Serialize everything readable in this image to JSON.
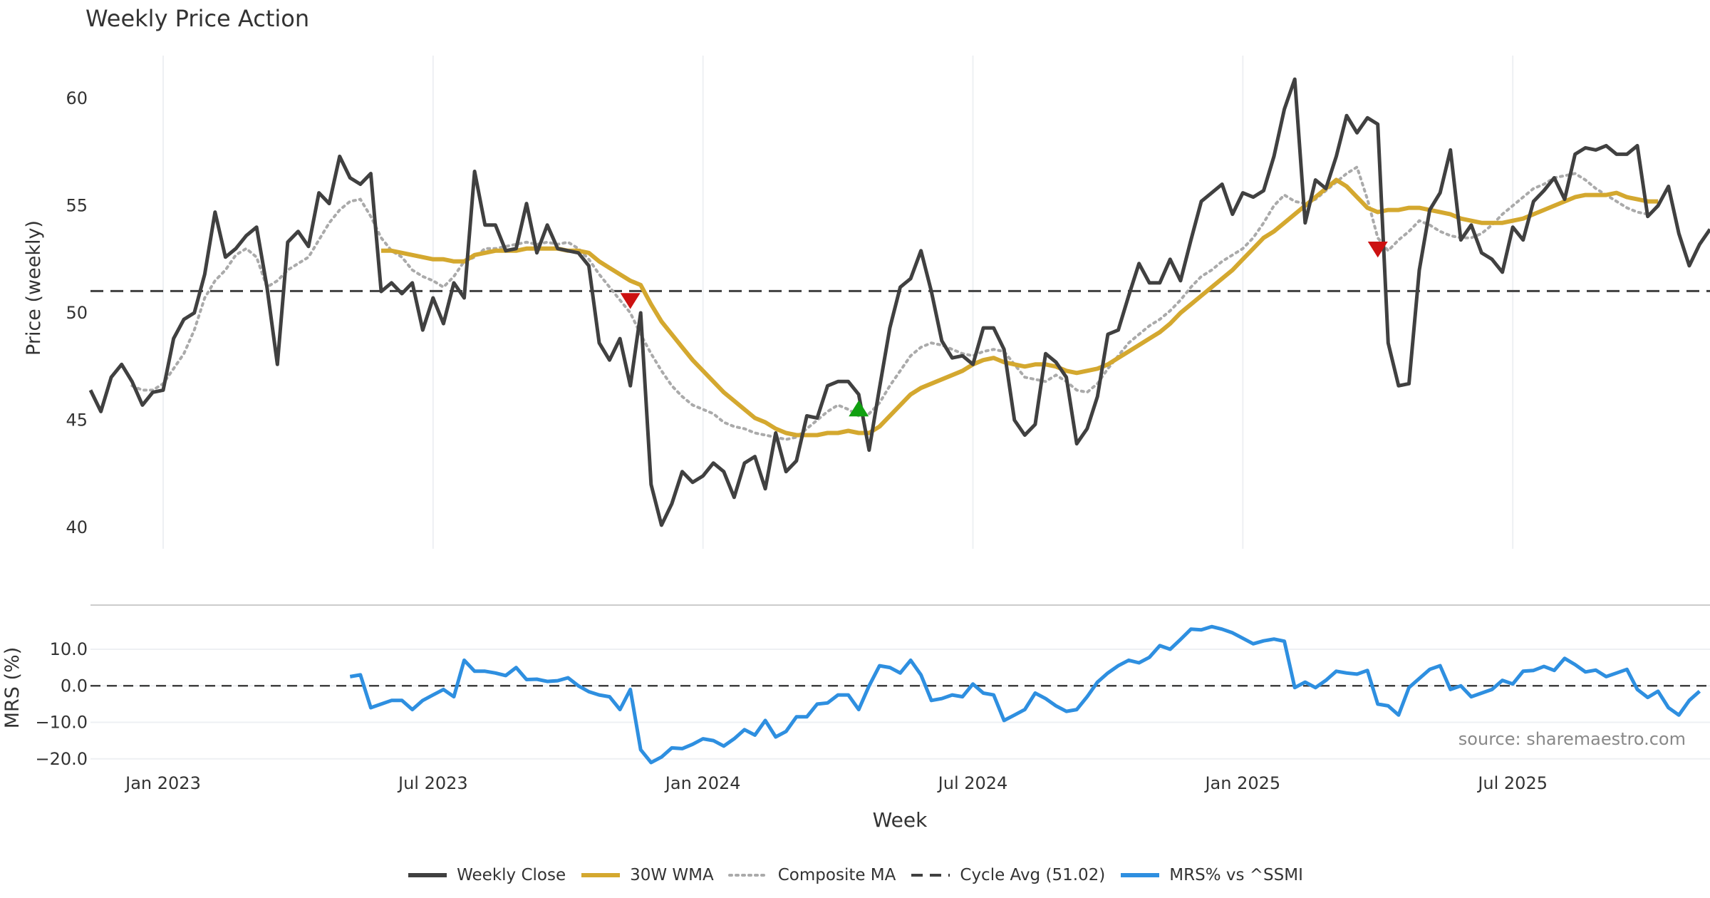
{
  "chart_data": {
    "type": "line",
    "title": "Weekly Price Action",
    "xlabel": "Week",
    "source": "source: sharemaestro.com",
    "x_ticks": [
      "Jan 2023",
      "Jul 2023",
      "Jan 2024",
      "Jul 2024",
      "Jan 2025",
      "Jul 2025"
    ],
    "x_tick_weeks": [
      7,
      33,
      59,
      85,
      111,
      137
    ],
    "x_range": [
      0,
      156
    ],
    "price_panel": {
      "ylabel": "Price (weekly)",
      "ylim": [
        39,
        62
      ],
      "yticks": [
        40,
        45,
        50,
        55,
        60
      ],
      "cycle_avg": 51.02,
      "weekly_close": [
        46.4,
        45.4,
        47.0,
        47.6,
        46.8,
        45.7,
        46.3,
        46.4,
        48.8,
        49.7,
        50.0,
        51.8,
        54.7,
        52.6,
        53.0,
        53.6,
        54.0,
        51.2,
        47.6,
        53.3,
        53.8,
        53.1,
        55.6,
        55.1,
        57.3,
        56.3,
        56.0,
        56.5,
        51.0,
        51.4,
        50.9,
        51.4,
        49.2,
        50.7,
        49.5,
        51.4,
        50.7,
        56.6,
        54.1,
        54.1,
        52.9,
        53.0,
        55.1,
        52.8,
        54.1,
        53.0,
        52.9,
        52.8,
        52.2,
        48.6,
        47.8,
        48.8,
        46.6,
        50.0,
        42.0,
        40.1,
        41.1,
        42.6,
        42.1,
        42.4,
        43.0,
        42.6,
        41.4,
        43.0,
        43.3,
        41.8,
        44.4,
        42.6,
        43.1,
        45.2,
        45.1,
        46.6,
        46.8,
        46.8,
        46.2,
        43.6,
        46.5,
        49.3,
        51.2,
        51.6,
        52.9,
        51.0,
        48.7,
        47.9,
        48.0,
        47.6,
        49.3,
        49.3,
        48.3,
        45.0,
        44.3,
        44.8,
        48.1,
        47.7,
        47.0,
        43.9,
        44.6,
        46.1,
        49.0,
        49.2,
        50.8,
        52.3,
        51.4,
        51.4,
        52.5,
        51.5,
        53.4,
        55.2,
        55.6,
        56.0,
        54.6,
        55.6,
        55.4,
        55.7,
        57.3,
        59.5,
        60.9,
        54.2,
        56.2,
        55.8,
        57.3,
        59.2,
        58.4,
        59.1,
        58.8,
        48.6,
        46.6,
        46.7,
        52.0,
        54.8,
        55.6,
        57.6,
        53.4,
        54.1,
        52.8,
        52.5,
        51.9,
        54.0,
        53.4,
        55.2,
        55.7,
        56.3,
        55.3,
        57.4,
        57.7,
        57.6,
        57.8,
        57.4,
        57.4,
        57.8,
        54.5,
        55.0,
        55.9,
        53.7,
        52.2,
        53.2,
        53.9
      ],
      "wma_30": [
        null,
        null,
        null,
        null,
        null,
        null,
        null,
        null,
        null,
        null,
        null,
        null,
        null,
        null,
        null,
        null,
        null,
        null,
        null,
        null,
        null,
        null,
        null,
        null,
        null,
        null,
        null,
        null,
        52.9,
        52.9,
        52.8,
        52.7,
        52.6,
        52.5,
        52.5,
        52.4,
        52.4,
        52.7,
        52.8,
        52.9,
        52.9,
        52.9,
        53.0,
        53.0,
        53.0,
        53.0,
        52.9,
        52.9,
        52.8,
        52.4,
        52.1,
        51.8,
        51.5,
        51.3,
        50.4,
        49.6,
        49.0,
        48.4,
        47.8,
        47.3,
        46.8,
        46.3,
        45.9,
        45.5,
        45.1,
        44.9,
        44.6,
        44.4,
        44.3,
        44.3,
        44.3,
        44.4,
        44.4,
        44.5,
        44.4,
        44.4,
        44.7,
        45.2,
        45.7,
        46.2,
        46.5,
        46.7,
        46.9,
        47.1,
        47.3,
        47.6,
        47.8,
        47.9,
        47.7,
        47.6,
        47.5,
        47.6,
        47.6,
        47.5,
        47.3,
        47.2,
        47.3,
        47.4,
        47.6,
        47.9,
        48.2,
        48.5,
        48.8,
        49.1,
        49.5,
        50.0,
        50.4,
        50.8,
        51.2,
        51.6,
        52.0,
        52.5,
        53.0,
        53.5,
        53.8,
        54.2,
        54.6,
        55.0,
        55.4,
        55.8,
        56.2,
        55.9,
        55.4,
        54.9,
        54.7,
        54.8,
        54.8,
        54.9,
        54.9,
        54.8,
        54.7,
        54.6,
        54.4,
        54.3,
        54.2,
        54.2,
        54.2,
        54.3,
        54.4,
        54.6,
        54.8,
        55.0,
        55.2,
        55.4,
        55.5,
        55.5,
        55.5,
        55.6,
        55.4,
        55.3,
        55.2,
        55.2
      ],
      "composite_ma": [
        null,
        null,
        null,
        null,
        46.6,
        46.4,
        46.4,
        46.7,
        47.4,
        48.1,
        49.2,
        50.7,
        51.5,
        52.0,
        52.7,
        53.0,
        52.6,
        51.2,
        51.5,
        52.0,
        52.3,
        52.6,
        53.4,
        54.2,
        54.8,
        55.2,
        55.3,
        54.5,
        53.5,
        52.9,
        52.6,
        52.0,
        51.7,
        51.5,
        51.2,
        51.7,
        52.4,
        52.6,
        53.0,
        53.0,
        53.1,
        53.2,
        53.3,
        53.2,
        53.3,
        53.2,
        53.3,
        53.0,
        52.5,
        51.8,
        51.2,
        50.6,
        50.0,
        49.0,
        48.1,
        47.3,
        46.6,
        46.1,
        45.7,
        45.5,
        45.3,
        44.9,
        44.7,
        44.6,
        44.4,
        44.3,
        44.2,
        44.1,
        44.2,
        44.6,
        45.0,
        45.4,
        45.7,
        45.5,
        45.2,
        45.3,
        45.8,
        46.6,
        47.3,
        48.0,
        48.4,
        48.6,
        48.5,
        48.3,
        48.1,
        48.0,
        48.2,
        48.3,
        48.2,
        47.6,
        47.0,
        46.9,
        46.8,
        47.1,
        46.8,
        46.4,
        46.3,
        46.7,
        47.4,
        48.0,
        48.6,
        49.0,
        49.4,
        49.7,
        50.1,
        50.6,
        51.2,
        51.7,
        52.0,
        52.4,
        52.7,
        53.0,
        53.5,
        54.2,
        55.0,
        55.5,
        55.2,
        55.1,
        55.3,
        55.7,
        56.1,
        56.5,
        56.8,
        55.3,
        53.5,
        52.9,
        53.4,
        53.8,
        54.3,
        54.1,
        53.8,
        53.6,
        53.5,
        53.5,
        53.7,
        54.1,
        54.6,
        55.0,
        55.4,
        55.8,
        56.0,
        56.3,
        56.4,
        56.5,
        56.2,
        55.8,
        55.5,
        55.2,
        54.9,
        54.7,
        54.6
      ],
      "markers": [
        {
          "week": 52,
          "value": 50.6,
          "type": "sell"
        },
        {
          "week": 74,
          "value": 45.5,
          "type": "buy"
        },
        {
          "week": 124,
          "value": 53.0,
          "type": "sell"
        }
      ]
    },
    "mrs_panel": {
      "ylabel": "MRS (%)",
      "ylim": [
        -22,
        18
      ],
      "yticks": [
        10.0,
        0.0,
        -10.0,
        -20.0
      ],
      "ytick_labels": [
        "10.0",
        "0.0",
        "−10.0",
        "−20.0"
      ],
      "zero_line": 0.0,
      "mrs_vs_ssmi": [
        null,
        null,
        null,
        null,
        null,
        null,
        null,
        null,
        null,
        null,
        null,
        null,
        null,
        null,
        null,
        null,
        null,
        null,
        null,
        null,
        null,
        null,
        null,
        null,
        null,
        2.5,
        3.0,
        -6.0,
        -5.0,
        -4.0,
        -4.0,
        -6.5,
        -4.0,
        -2.5,
        -1.0,
        -3.0,
        7.0,
        4.0,
        4.0,
        3.5,
        2.8,
        5.0,
        1.7,
        1.8,
        1.2,
        1.4,
        2.2,
        0.0,
        -1.6,
        -2.5,
        -3.0,
        -6.5,
        -1.0,
        -17.5,
        -21.0,
        -19.5,
        -17.0,
        -17.2,
        -16.0,
        -14.5,
        -15.0,
        -16.5,
        -14.5,
        -12.0,
        -13.5,
        -9.5,
        -14.0,
        -12.5,
        -8.5,
        -8.5,
        -5.0,
        -4.7,
        -2.5,
        -2.5,
        -6.5,
        0.0,
        5.5,
        5.0,
        3.5,
        7.0,
        3.0,
        -4.0,
        -3.5,
        -2.5,
        -3.0,
        0.5,
        -2.0,
        -2.5,
        -9.5,
        -8.0,
        -6.5,
        -2.0,
        -3.5,
        -5.5,
        -7.0,
        -6.5,
        -3.0,
        1.0,
        3.5,
        5.5,
        7.0,
        6.3,
        7.8,
        11.0,
        10.0,
        12.7,
        15.5,
        15.3,
        16.2,
        15.5,
        14.5,
        13.0,
        11.5,
        12.3,
        12.8,
        12.2,
        -0.5,
        1.0,
        -0.5,
        1.5,
        4.0,
        3.5,
        3.2,
        4.2,
        -5.0,
        -5.5,
        -8.0,
        -0.5,
        2.0,
        4.5,
        5.5,
        -1.0,
        0.0,
        -3.0,
        -2.0,
        -1.0,
        1.5,
        0.5,
        4.0,
        4.2,
        5.3,
        4.2,
        7.5,
        5.8,
        3.8,
        4.3,
        2.5,
        3.5,
        4.5,
        -1.0,
        -3.2,
        -1.5,
        -6.0,
        -8.0,
        -4.0,
        -1.5
      ]
    },
    "legend": [
      {
        "label": "Weekly Close",
        "color": "#404040",
        "style": "solid"
      },
      {
        "label": "30W WMA",
        "color": "#d4a82f",
        "style": "solid"
      },
      {
        "label": "Composite MA",
        "color": "#aaaaaa",
        "style": "dotted"
      },
      {
        "label": "Cycle Avg (51.02)",
        "color": "#404040",
        "style": "dashed"
      },
      {
        "label": "MRS% vs ^SSMI",
        "color": "#2e8fe0",
        "style": "solid"
      }
    ]
  }
}
